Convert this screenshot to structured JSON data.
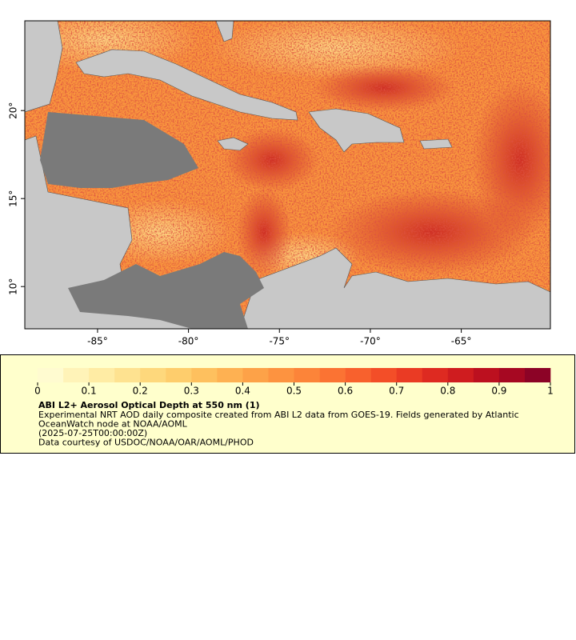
{
  "chart_data": {
    "type": "map",
    "xlim": [
      -89,
      -60.1
    ],
    "ylim": [
      7.6,
      25.1
    ],
    "xticks": [
      {
        "value": -85,
        "label": "-85°"
      },
      {
        "value": -80,
        "label": "-80°"
      },
      {
        "value": -75,
        "label": "-75°"
      },
      {
        "value": -70,
        "label": "-70°"
      },
      {
        "value": -65,
        "label": "-65°"
      }
    ],
    "yticks": [
      {
        "value": 10,
        "label": "10°"
      },
      {
        "value": 15,
        "label": "15°"
      },
      {
        "value": 20,
        "label": "20°"
      }
    ],
    "colorbar": {
      "lim": [
        0,
        1
      ],
      "ticks": [
        0,
        0.1,
        0.2,
        0.3,
        0.4,
        0.5,
        0.6,
        0.7,
        0.8,
        0.9,
        1
      ],
      "colors": [
        "#fffbd0",
        "#fff3b8",
        "#ffeca4",
        "#fee290",
        "#fed87c",
        "#fecd6c",
        "#fec05e",
        "#feb152",
        "#fda248",
        "#fd9340",
        "#fc8439",
        "#fb7333",
        "#f8612d",
        "#f34e28",
        "#ea3b24",
        "#de2a21",
        "#cf1c1f",
        "#bc101f",
        "#a60822",
        "#8c0326"
      ]
    },
    "legend": {
      "title": "ABI L2+ Aerosol Optical Depth at 550 nm (1)",
      "lines": [
        "Experimental NRT AOD daily composite created from ABI L2 data from GOES-19. Fields generated by Atlantic",
        "OceanWatch node at NOAA/AOML",
        "(2025-07-25T00:00:00Z)",
        "Data courtesy of USDOC/NOAA/OAR/AOML/PHOD"
      ]
    }
  }
}
